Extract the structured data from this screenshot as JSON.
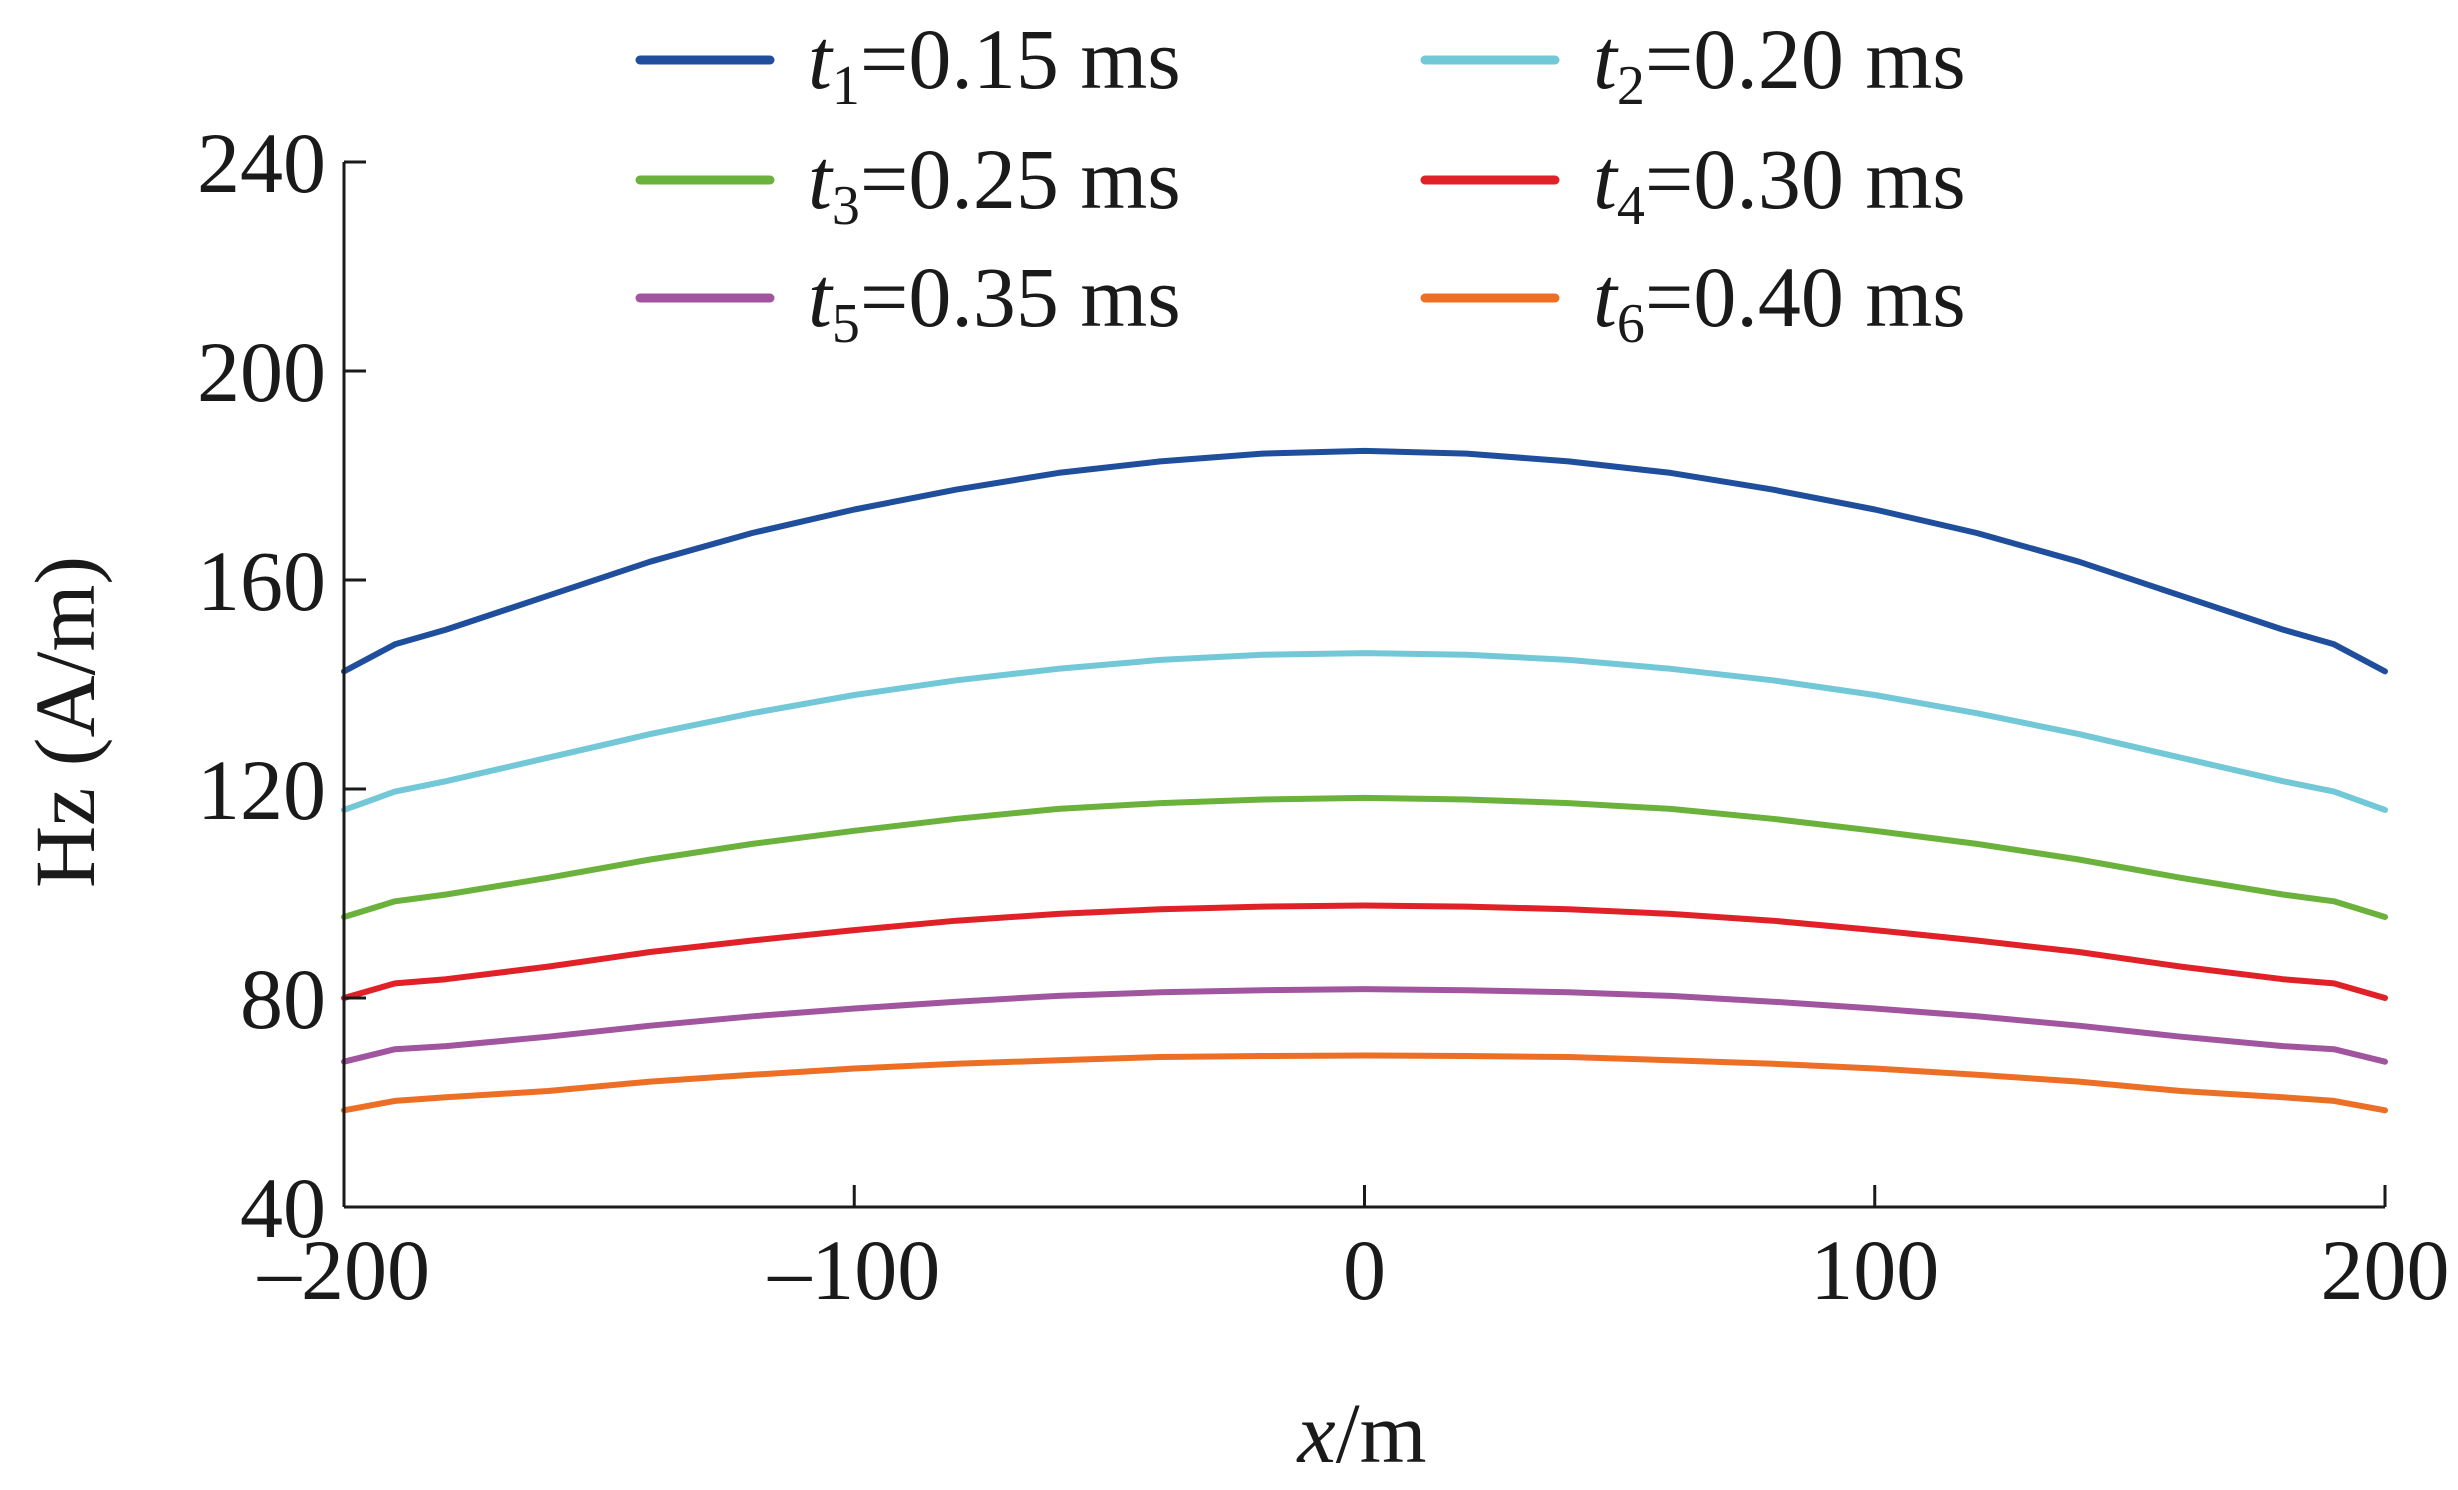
{
  "chart_data": {
    "type": "line",
    "xlabel": {
      "var": "x",
      "unit": "/m"
    },
    "ylabel": "Hz (A/m)",
    "xlim": [
      -200,
      200
    ],
    "ylim": [
      40,
      240
    ],
    "xticks": [
      -200,
      -100,
      0,
      100,
      200
    ],
    "xtick_labels": [
      "–200",
      "–100",
      "0",
      "100",
      "200"
    ],
    "yticks": [
      40,
      80,
      120,
      160,
      200,
      240
    ],
    "ytick_labels": [
      "40",
      "80",
      "120",
      "160",
      "200",
      "240"
    ],
    "grid": false,
    "legend_position": "top",
    "x": [
      -200,
      -190,
      -180,
      -160,
      -140,
      -120,
      -100,
      -80,
      -60,
      -40,
      -20,
      0,
      20,
      40,
      60,
      80,
      100,
      120,
      140,
      160,
      180,
      190,
      200
    ],
    "series": [
      {
        "name": "t1=0.15 ms",
        "var": "t",
        "sub": "1",
        "value": "=0.15 ms",
        "color": "#1f4e9c",
        "values": [
          142.5,
          147.7,
          150.5,
          157,
          163.5,
          169,
          173.5,
          177.3,
          180.5,
          182.7,
          184.2,
          184.7,
          184.2,
          182.7,
          180.5,
          177.3,
          173.5,
          169,
          163.5,
          157,
          150.5,
          147.7,
          142.5
        ]
      },
      {
        "name": "t2=0.20 ms",
        "var": "t",
        "sub": "2",
        "value": "=0.20 ms",
        "color": "#72c8d6",
        "values": [
          116,
          119.5,
          121.5,
          126,
          130.5,
          134.5,
          138,
          140.8,
          143,
          144.7,
          145.7,
          146,
          145.7,
          144.7,
          143,
          140.8,
          138,
          134.5,
          130.5,
          126,
          121.5,
          119.5,
          116
        ]
      },
      {
        "name": "t3=0.25 ms",
        "var": "t",
        "sub": "3",
        "value": "=0.25 ms",
        "color": "#6ab23b",
        "values": [
          95.5,
          98.5,
          99.8,
          103,
          106.5,
          109.5,
          112,
          114.3,
          116.2,
          117.3,
          118,
          118.3,
          118,
          117.3,
          116.2,
          114.3,
          112,
          109.5,
          106.5,
          103,
          99.8,
          98.5,
          95.5
        ]
      },
      {
        "name": "t4=0.30 ms",
        "var": "t",
        "sub": "4",
        "value": "=0.30 ms",
        "color": "#e02127",
        "values": [
          80,
          82.8,
          83.6,
          86,
          88.8,
          91,
          93,
          94.8,
          96.1,
          97,
          97.5,
          97.7,
          97.5,
          97,
          96.1,
          94.8,
          93,
          91,
          88.8,
          86,
          83.6,
          82.8,
          80
        ]
      },
      {
        "name": "t5=0.35 ms",
        "var": "t",
        "sub": "5",
        "value": "=0.35 ms",
        "color": "#a0559e",
        "values": [
          67.8,
          70.2,
          70.8,
          72.6,
          74.7,
          76.5,
          78,
          79.3,
          80.4,
          81.1,
          81.5,
          81.7,
          81.5,
          81.1,
          80.4,
          79.3,
          78,
          76.5,
          74.7,
          72.6,
          70.8,
          70.2,
          67.8
        ]
      },
      {
        "name": "t6=0.40 ms",
        "var": "t",
        "sub": "6",
        "value": "=0.40 ms",
        "color": "#ec6f25",
        "values": [
          58.5,
          60.3,
          61,
          62.2,
          64,
          65.3,
          66.5,
          67.4,
          68.1,
          68.7,
          68.9,
          69,
          68.9,
          68.7,
          68.1,
          67.4,
          66.5,
          65.3,
          64,
          62.2,
          61,
          60.3,
          58.5
        ]
      }
    ]
  }
}
